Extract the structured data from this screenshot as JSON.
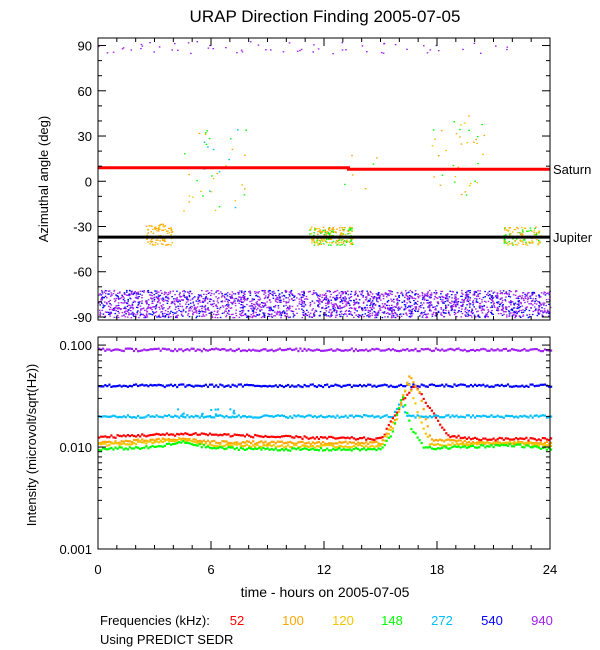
{
  "chart_data": {
    "title": "URAP Direction Finding  2005-07-05",
    "xlabel": "time - hours on 2005-07-05",
    "xlim": [
      0,
      24
    ],
    "xticks": [
      0,
      6,
      12,
      18,
      24
    ],
    "panels": [
      {
        "type": "scatter",
        "name": "azimuth",
        "ylabel": "Azimuthal angle (deg)",
        "ylim": [
          -92,
          95
        ],
        "yticks": [
          90,
          60,
          30,
          0,
          -30,
          -60,
          -90
        ],
        "reference_lines": [
          {
            "name": "Saturn",
            "color": "#ff0000",
            "x": [
              0,
              13.3,
              13.3,
              24
            ],
            "y": [
              9,
              9,
              8,
              8
            ]
          },
          {
            "name": "Jupiter",
            "color": "#000000",
            "x": [
              0,
              24
            ],
            "y": [
              -37,
              -37
            ]
          }
        ],
        "clusters": [
          {
            "x": [
              0,
              24
            ],
            "y": [
              -90,
              -72
            ],
            "density": 2400,
            "colors": [
              "#a020f0",
              "#0000ff",
              "#a020f0"
            ]
          },
          {
            "x": [
              2.5,
              4.0
            ],
            "y": [
              -42,
              -28
            ],
            "density": 90,
            "colors": [
              "#ffa500",
              "#ffa500",
              "#f5c400"
            ]
          },
          {
            "x": [
              11.2,
              13.5
            ],
            "y": [
              -42,
              -30
            ],
            "density": 200,
            "colors": [
              "#00ff00",
              "#ffa500",
              "#f5c400"
            ]
          },
          {
            "x": [
              21.5,
              23.5
            ],
            "y": [
              -42,
              -30
            ],
            "density": 110,
            "colors": [
              "#00ff00",
              "#ffa500",
              "#f5c400"
            ]
          },
          {
            "x": [
              4.5,
              8.0
            ],
            "y": [
              -20,
              35
            ],
            "density": 40,
            "colors": [
              "#00ff00",
              "#ffa500",
              "#f5c400",
              "#00bfff"
            ]
          },
          {
            "x": [
              17.5,
              20.5
            ],
            "y": [
              -10,
              45
            ],
            "density": 40,
            "colors": [
              "#00ff00",
              "#ffa500",
              "#f5c400"
            ]
          },
          {
            "x": [
              0,
              24
            ],
            "y": [
              85,
              93
            ],
            "density": 60,
            "colors": [
              "#a020f0"
            ]
          },
          {
            "x": [
              13,
              15
            ],
            "y": [
              -5,
              20
            ],
            "density": 6,
            "colors": [
              "#ffa500",
              "#00ff00"
            ]
          }
        ]
      },
      {
        "type": "line",
        "name": "intensity",
        "scale": "log",
        "ylabel": "Intensity (microvolt/sqrt(Hz))",
        "ylim": [
          0.001,
          0.12
        ],
        "ytick_labels": [
          "0.100",
          "0.010",
          "0.001"
        ],
        "series": [
          {
            "name": "940",
            "color": "#a020f0",
            "x": [
              0,
              24
            ],
            "y": [
              0.09,
              0.09
            ]
          },
          {
            "name": "540",
            "color": "#0000ff",
            "x": [
              0,
              24
            ],
            "y": [
              0.04,
              0.04
            ]
          },
          {
            "name": "272",
            "color": "#00bfff",
            "x": [
              0,
              15.6,
              16.0,
              16.4,
              17.0,
              24
            ],
            "y": [
              0.02,
              0.02,
              0.027,
              0.02,
              0.02,
              0.02
            ]
          },
          {
            "name": "52",
            "color": "#ff0000",
            "x": [
              0,
              2,
              5,
              10,
              15,
              16.2,
              16.8,
              17.5,
              18.5,
              20,
              24
            ],
            "y": [
              0.0125,
              0.013,
              0.0135,
              0.0125,
              0.012,
              0.03,
              0.04,
              0.025,
              0.013,
              0.012,
              0.012
            ]
          },
          {
            "name": "100",
            "color": "#ffa500",
            "x": [
              0,
              2,
              4.5,
              6,
              10,
              15,
              15.8,
              16.5,
              17.0,
              17.6,
              20,
              24
            ],
            "y": [
              0.011,
              0.0115,
              0.012,
              0.0112,
              0.011,
              0.011,
              0.02,
              0.05,
              0.035,
              0.012,
              0.011,
              0.011
            ]
          },
          {
            "name": "120",
            "color": "#f5c400",
            "x": [
              0,
              2,
              4.5,
              6,
              10,
              15,
              15.8,
              16.4,
              17.0,
              17.6,
              22,
              24
            ],
            "y": [
              0.0105,
              0.011,
              0.0118,
              0.0105,
              0.0102,
              0.0102,
              0.018,
              0.045,
              0.02,
              0.0105,
              0.011,
              0.0103
            ]
          },
          {
            "name": "148",
            "color": "#00ff00",
            "x": [
              0,
              3,
              4.5,
              6,
              10,
              15,
              15.6,
              16.1,
              16.6,
              17.3,
              22,
              24
            ],
            "y": [
              0.0095,
              0.01,
              0.0112,
              0.0098,
              0.0095,
              0.0095,
              0.014,
              0.033,
              0.015,
              0.0097,
              0.0105,
              0.0096
            ]
          }
        ],
        "annotations": [
          {
            "series": "272",
            "x": [
              4,
              7.2
            ],
            "y": [
              0.02,
              0.024
            ],
            "note": "scattered points above line"
          }
        ]
      }
    ],
    "legend": {
      "label": "Frequencies (kHz):",
      "entries": [
        {
          "name": "52",
          "color": "#ff0000"
        },
        {
          "name": "100",
          "color": "#ffa500"
        },
        {
          "name": "120",
          "color": "#f5c400"
        },
        {
          "name": "148",
          "color": "#00ff00"
        },
        {
          "name": "272",
          "color": "#00bfff"
        },
        {
          "name": "540",
          "color": "#0000ff"
        },
        {
          "name": "940",
          "color": "#a020f0"
        }
      ]
    },
    "footer": "Using PREDICT SEDR"
  }
}
